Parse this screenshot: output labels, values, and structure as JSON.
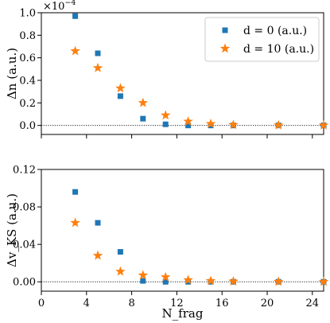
{
  "chart_data": [
    {
      "type": "scatter",
      "ylabel": "Δn (a.u.)",
      "y_scale_text": "×10",
      "y_scale_exponent": "−4",
      "xlim": [
        0,
        25
      ],
      "ylim": [
        -0.08,
        1.0
      ],
      "yticks": [
        "0.0",
        "0.2",
        "0.4",
        "0.6",
        "0.8",
        "1.0"
      ],
      "ytick_values": [
        0.0,
        0.2,
        0.4,
        0.6,
        0.8,
        1.0
      ],
      "xticks": [
        0,
        4,
        8,
        12,
        16,
        20,
        24
      ],
      "reference_line_y": 0,
      "grid": false,
      "legend_position": "top-right",
      "series": [
        {
          "name": "d = 0 (a.u.)",
          "marker": "square",
          "color": "#1f77b4",
          "x": [
            3,
            5,
            7,
            9,
            11,
            13,
            15,
            17,
            21,
            25
          ],
          "y": [
            0.97,
            0.64,
            0.26,
            0.06,
            0.01,
            0.0,
            0.0,
            0.0,
            0.0,
            0.0
          ]
        },
        {
          "name": "d = 10 (a.u.)",
          "marker": "star",
          "color": "#ff7f0e",
          "x": [
            3,
            5,
            7,
            9,
            11,
            13,
            15,
            17,
            21,
            25
          ],
          "y": [
            0.66,
            0.51,
            0.33,
            0.2,
            0.09,
            0.035,
            0.015,
            0.005,
            0.002,
            0.001
          ]
        }
      ]
    },
    {
      "type": "scatter",
      "ylabel": "Δv_KS (a.u.)",
      "xlabel": "N_frag",
      "xlim": [
        0,
        25
      ],
      "ylim": [
        -0.01,
        0.12
      ],
      "yticks": [
        "0.00",
        "0.04",
        "0.08",
        "0.12"
      ],
      "ytick_values": [
        0.0,
        0.04,
        0.08,
        0.12
      ],
      "xticks": [
        0,
        4,
        8,
        12,
        16,
        20,
        24
      ],
      "xtick_labels": [
        "0",
        "4",
        "8",
        "12",
        "16",
        "20",
        "24"
      ],
      "reference_line_y": 0,
      "grid": false,
      "series": [
        {
          "marker": "square",
          "color": "#1f77b4",
          "x": [
            3,
            5,
            7,
            9,
            11,
            13,
            15,
            17,
            21,
            25
          ],
          "y": [
            0.096,
            0.063,
            0.032,
            0.001,
            0.0,
            0.0,
            0.0,
            0.0,
            0.0,
            0.0
          ]
        },
        {
          "marker": "star",
          "color": "#ff7f0e",
          "x": [
            3,
            5,
            7,
            9,
            11,
            13,
            15,
            17,
            21,
            25
          ],
          "y": [
            0.063,
            0.028,
            0.011,
            0.007,
            0.005,
            0.002,
            0.001,
            0.0005,
            0.0002,
            0.0001
          ]
        }
      ]
    }
  ]
}
